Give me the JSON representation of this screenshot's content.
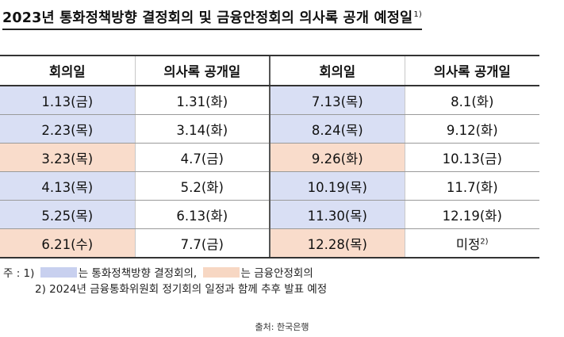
{
  "title": {
    "text": "2023년 통화정책방향 결정회의 및 금융안정회의 의사록 공개 예정일",
    "footnote_mark": "1)"
  },
  "table": {
    "headers": [
      "회의일",
      "의사록 공개일",
      "회의일",
      "의사록 공개일"
    ],
    "rows": [
      {
        "left_date": "1.13(금)",
        "left_type": "monetary",
        "left_release": "1.31(화)",
        "right_date": "7.13(목)",
        "right_type": "monetary",
        "right_release": "8.1(화)"
      },
      {
        "left_date": "2.23(목)",
        "left_type": "monetary",
        "left_release": "3.14(화)",
        "right_date": "8.24(목)",
        "right_type": "monetary",
        "right_release": "9.12(화)"
      },
      {
        "left_date": "3.23(목)",
        "left_type": "financial",
        "left_release": "4.7(금)",
        "right_date": "9.26(화)",
        "right_type": "financial",
        "right_release": "10.13(금)"
      },
      {
        "left_date": "4.13(목)",
        "left_type": "monetary",
        "left_release": "5.2(화)",
        "right_date": "10.19(목)",
        "right_type": "monetary",
        "right_release": "11.7(화)"
      },
      {
        "left_date": "5.25(목)",
        "left_type": "monetary",
        "left_release": "6.13(화)",
        "right_date": "11.30(목)",
        "right_type": "monetary",
        "right_release": "12.19(화)"
      },
      {
        "left_date": "6.21(수)",
        "left_type": "financial",
        "left_release": "7.7(금)",
        "right_date": "12.28(목)",
        "right_type": "financial",
        "right_release": "미정",
        "right_release_mark": "2)"
      }
    ]
  },
  "legend_colors": {
    "monetary": "#d9dff4",
    "financial": "#f9dccb"
  },
  "notes": {
    "prefix": "주 : 1)",
    "monetary_label": "는 통화정책방향 결정회의,",
    "financial_label": "는 금융안정회의",
    "note2": "2) 2024년 금융통화위원회 정기회의 일정과 함께 추후 발표 예정"
  },
  "source": "출처: 한국은행"
}
